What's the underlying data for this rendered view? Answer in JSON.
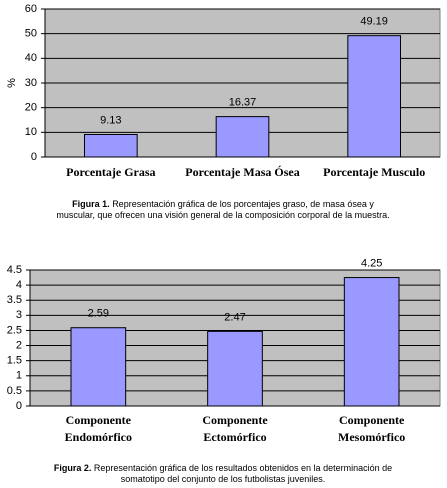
{
  "chart_data": [
    {
      "type": "bar",
      "y_label": "%",
      "categories": [
        "Porcentaje Grasa",
        "Porcentaje Masa Ósea",
        "Porcentaje Musculo"
      ],
      "values": [
        9.13,
        16.37,
        49.19
      ],
      "color": "#9999ff",
      "ylim": [
        0,
        60
      ],
      "yticks": [
        0,
        10,
        20,
        30,
        40,
        50,
        60
      ],
      "grid": true,
      "figure_label": "Figura 1.",
      "caption": "Representación gráfica de los porcentajes graso, de masa ósea y muscular, que ofrecen una visión general de la composición corporal de la muestra."
    },
    {
      "type": "bar",
      "categories": [
        "Componente Endomórfico",
        "Componente Ectomórfico",
        "Componente Mesomórfico"
      ],
      "values": [
        2.59,
        2.47,
        4.25
      ],
      "color": "#9999ff",
      "ylim": [
        0,
        4.5
      ],
      "yticks": [
        0,
        0.5,
        1,
        1.5,
        2,
        2.5,
        3,
        3.5,
        4,
        4.5
      ],
      "grid": true,
      "figure_label": "Figura 2.",
      "caption": "Representación gráfica de los resultados obtenidos en la determinación de somatotipo del conjunto de los futbolistas juveniles."
    }
  ]
}
